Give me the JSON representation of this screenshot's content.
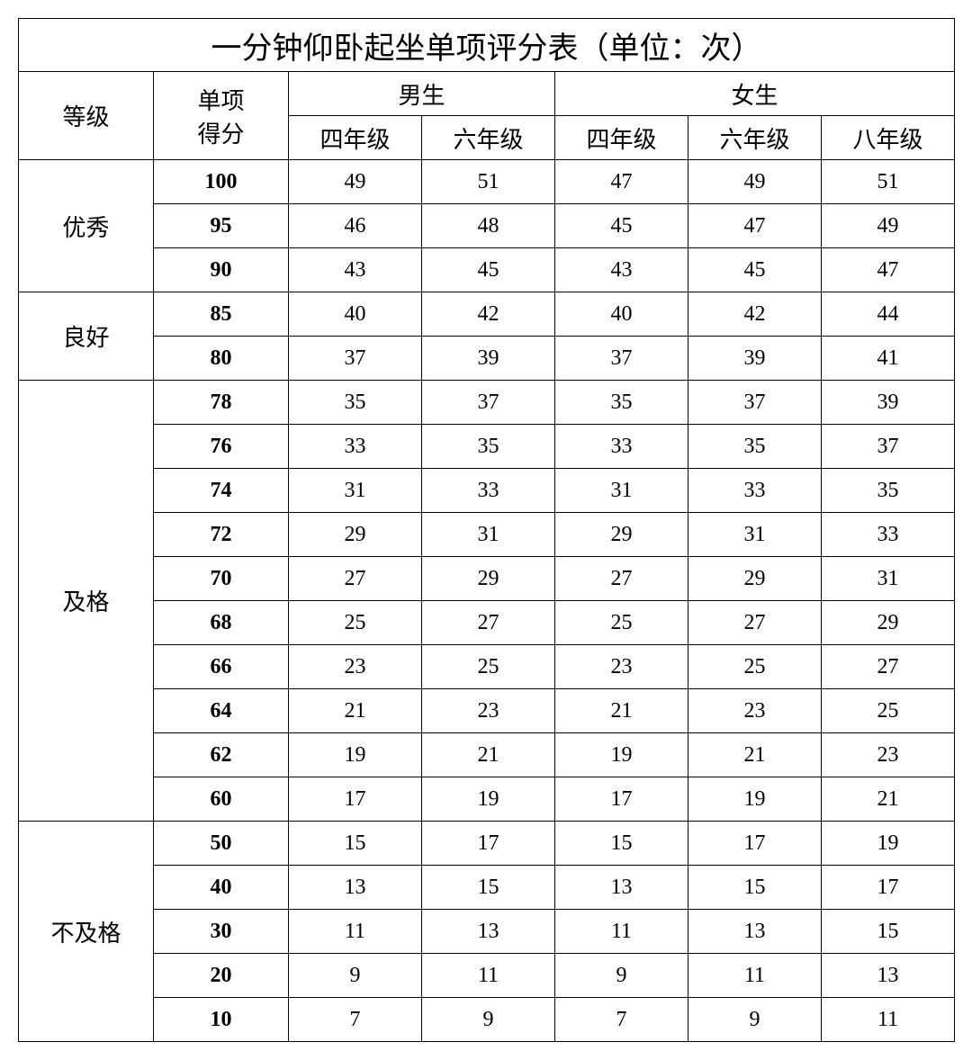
{
  "title": "一分钟仰卧起坐单项评分表（单位：次）",
  "headers": {
    "level": "等级",
    "score": "单项\n得分",
    "male": "男生",
    "female": "女生",
    "male_cols": [
      "四年级",
      "六年级"
    ],
    "female_cols": [
      "四年级",
      "六年级",
      "八年级"
    ]
  },
  "levels": [
    {
      "name": "优秀",
      "rows": [
        {
          "score": "100",
          "vals": [
            "49",
            "51",
            "47",
            "49",
            "51"
          ]
        },
        {
          "score": "95",
          "vals": [
            "46",
            "48",
            "45",
            "47",
            "49"
          ]
        },
        {
          "score": "90",
          "vals": [
            "43",
            "45",
            "43",
            "45",
            "47"
          ]
        }
      ]
    },
    {
      "name": "良好",
      "rows": [
        {
          "score": "85",
          "vals": [
            "40",
            "42",
            "40",
            "42",
            "44"
          ]
        },
        {
          "score": "80",
          "vals": [
            "37",
            "39",
            "37",
            "39",
            "41"
          ]
        }
      ]
    },
    {
      "name": "及格",
      "rows": [
        {
          "score": "78",
          "vals": [
            "35",
            "37",
            "35",
            "37",
            "39"
          ]
        },
        {
          "score": "76",
          "vals": [
            "33",
            "35",
            "33",
            "35",
            "37"
          ]
        },
        {
          "score": "74",
          "vals": [
            "31",
            "33",
            "31",
            "33",
            "35"
          ]
        },
        {
          "score": "72",
          "vals": [
            "29",
            "31",
            "29",
            "31",
            "33"
          ]
        },
        {
          "score": "70",
          "vals": [
            "27",
            "29",
            "27",
            "29",
            "31"
          ]
        },
        {
          "score": "68",
          "vals": [
            "25",
            "27",
            "25",
            "27",
            "29"
          ]
        },
        {
          "score": "66",
          "vals": [
            "23",
            "25",
            "23",
            "25",
            "27"
          ]
        },
        {
          "score": "64",
          "vals": [
            "21",
            "23",
            "21",
            "23",
            "25"
          ]
        },
        {
          "score": "62",
          "vals": [
            "19",
            "21",
            "19",
            "21",
            "23"
          ]
        },
        {
          "score": "60",
          "vals": [
            "17",
            "19",
            "17",
            "19",
            "21"
          ]
        }
      ]
    },
    {
      "name": "不及格",
      "rows": [
        {
          "score": "50",
          "vals": [
            "15",
            "17",
            "15",
            "17",
            "19"
          ]
        },
        {
          "score": "40",
          "vals": [
            "13",
            "15",
            "13",
            "15",
            "17"
          ]
        },
        {
          "score": "30",
          "vals": [
            "11",
            "13",
            "11",
            "13",
            "15"
          ]
        },
        {
          "score": "20",
          "vals": [
            "9",
            "11",
            "9",
            "11",
            "13"
          ]
        },
        {
          "score": "10",
          "vals": [
            "7",
            "9",
            "7",
            "9",
            "11"
          ]
        }
      ]
    }
  ]
}
